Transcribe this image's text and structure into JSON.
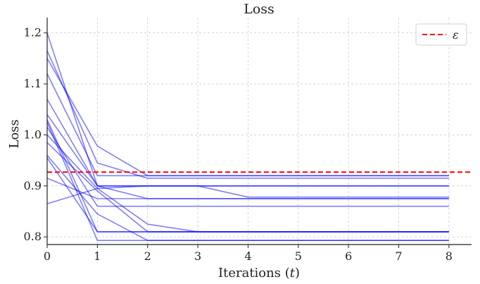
{
  "chart_data": {
    "type": "line",
    "title": "Loss",
    "xlabel": "Iterations",
    "xlabel_var": "t",
    "ylabel": "Loss",
    "xlim": [
      0,
      8.45
    ],
    "ylim": [
      0.785,
      1.23
    ],
    "xticks": [
      0,
      1,
      2,
      3,
      4,
      5,
      6,
      7,
      8
    ],
    "yticks": [
      0.8,
      0.9,
      1.0,
      1.1,
      1.2
    ],
    "ytick_labels": [
      "0.8",
      "0.9",
      "1.0",
      "1.1",
      "1.2"
    ],
    "grid": true,
    "grid_style": "dashed",
    "line_color": "#0000ff",
    "x": [
      0,
      1,
      2,
      3,
      4,
      5,
      6,
      7,
      8
    ],
    "series": [
      {
        "values": [
          1.2,
          0.9,
          0.9,
          0.9,
          0.9,
          0.9,
          0.9,
          0.9,
          0.9
        ]
      },
      {
        "values": [
          1.165,
          0.945,
          0.915,
          0.915,
          0.915,
          0.915,
          0.915,
          0.915,
          0.915
        ]
      },
      {
        "values": [
          1.15,
          0.978,
          0.92,
          0.92,
          0.92,
          0.92,
          0.92,
          0.92,
          0.92
        ]
      },
      {
        "values": [
          1.12,
          0.92,
          0.92,
          0.92,
          0.92,
          0.92,
          0.92,
          0.92,
          0.92
        ]
      },
      {
        "values": [
          1.07,
          0.9,
          0.9,
          0.9,
          0.878,
          0.878,
          0.878,
          0.878,
          0.878
        ]
      },
      {
        "values": [
          1.04,
          0.9,
          0.875,
          0.875,
          0.875,
          0.875,
          0.875,
          0.875,
          0.875
        ]
      },
      {
        "values": [
          1.03,
          0.81,
          0.81,
          0.81,
          0.81,
          0.81,
          0.81,
          0.81,
          0.81
        ]
      },
      {
        "values": [
          1.025,
          0.793,
          0.793,
          0.793,
          0.793,
          0.793,
          0.793,
          0.793,
          0.793
        ]
      },
      {
        "values": [
          1.015,
          0.86,
          0.86,
          0.86,
          0.86,
          0.86,
          0.86,
          0.86,
          0.86
        ]
      },
      {
        "values": [
          1.0,
          0.895,
          0.825,
          0.81,
          0.81,
          0.81,
          0.81,
          0.81,
          0.81
        ]
      },
      {
        "values": [
          0.985,
          0.89,
          0.81,
          0.81,
          0.81,
          0.81,
          0.81,
          0.81,
          0.81
        ]
      },
      {
        "values": [
          0.96,
          0.845,
          0.793,
          0.793,
          0.793,
          0.793,
          0.793,
          0.793,
          0.793
        ]
      },
      {
        "values": [
          0.955,
          0.81,
          0.81,
          0.81,
          0.81,
          0.81,
          0.81,
          0.81,
          0.81
        ]
      },
      {
        "values": [
          0.915,
          0.875,
          0.875,
          0.875,
          0.875,
          0.875,
          0.875,
          0.875,
          0.875
        ]
      },
      {
        "values": [
          0.865,
          0.895,
          0.9,
          0.9,
          0.9,
          0.9,
          0.9,
          0.9,
          0.9
        ]
      }
    ],
    "reference_line": {
      "value": 0.927,
      "color": "#ff0000",
      "style": "dashed",
      "label": "ε"
    },
    "legend_position": "top-right"
  }
}
